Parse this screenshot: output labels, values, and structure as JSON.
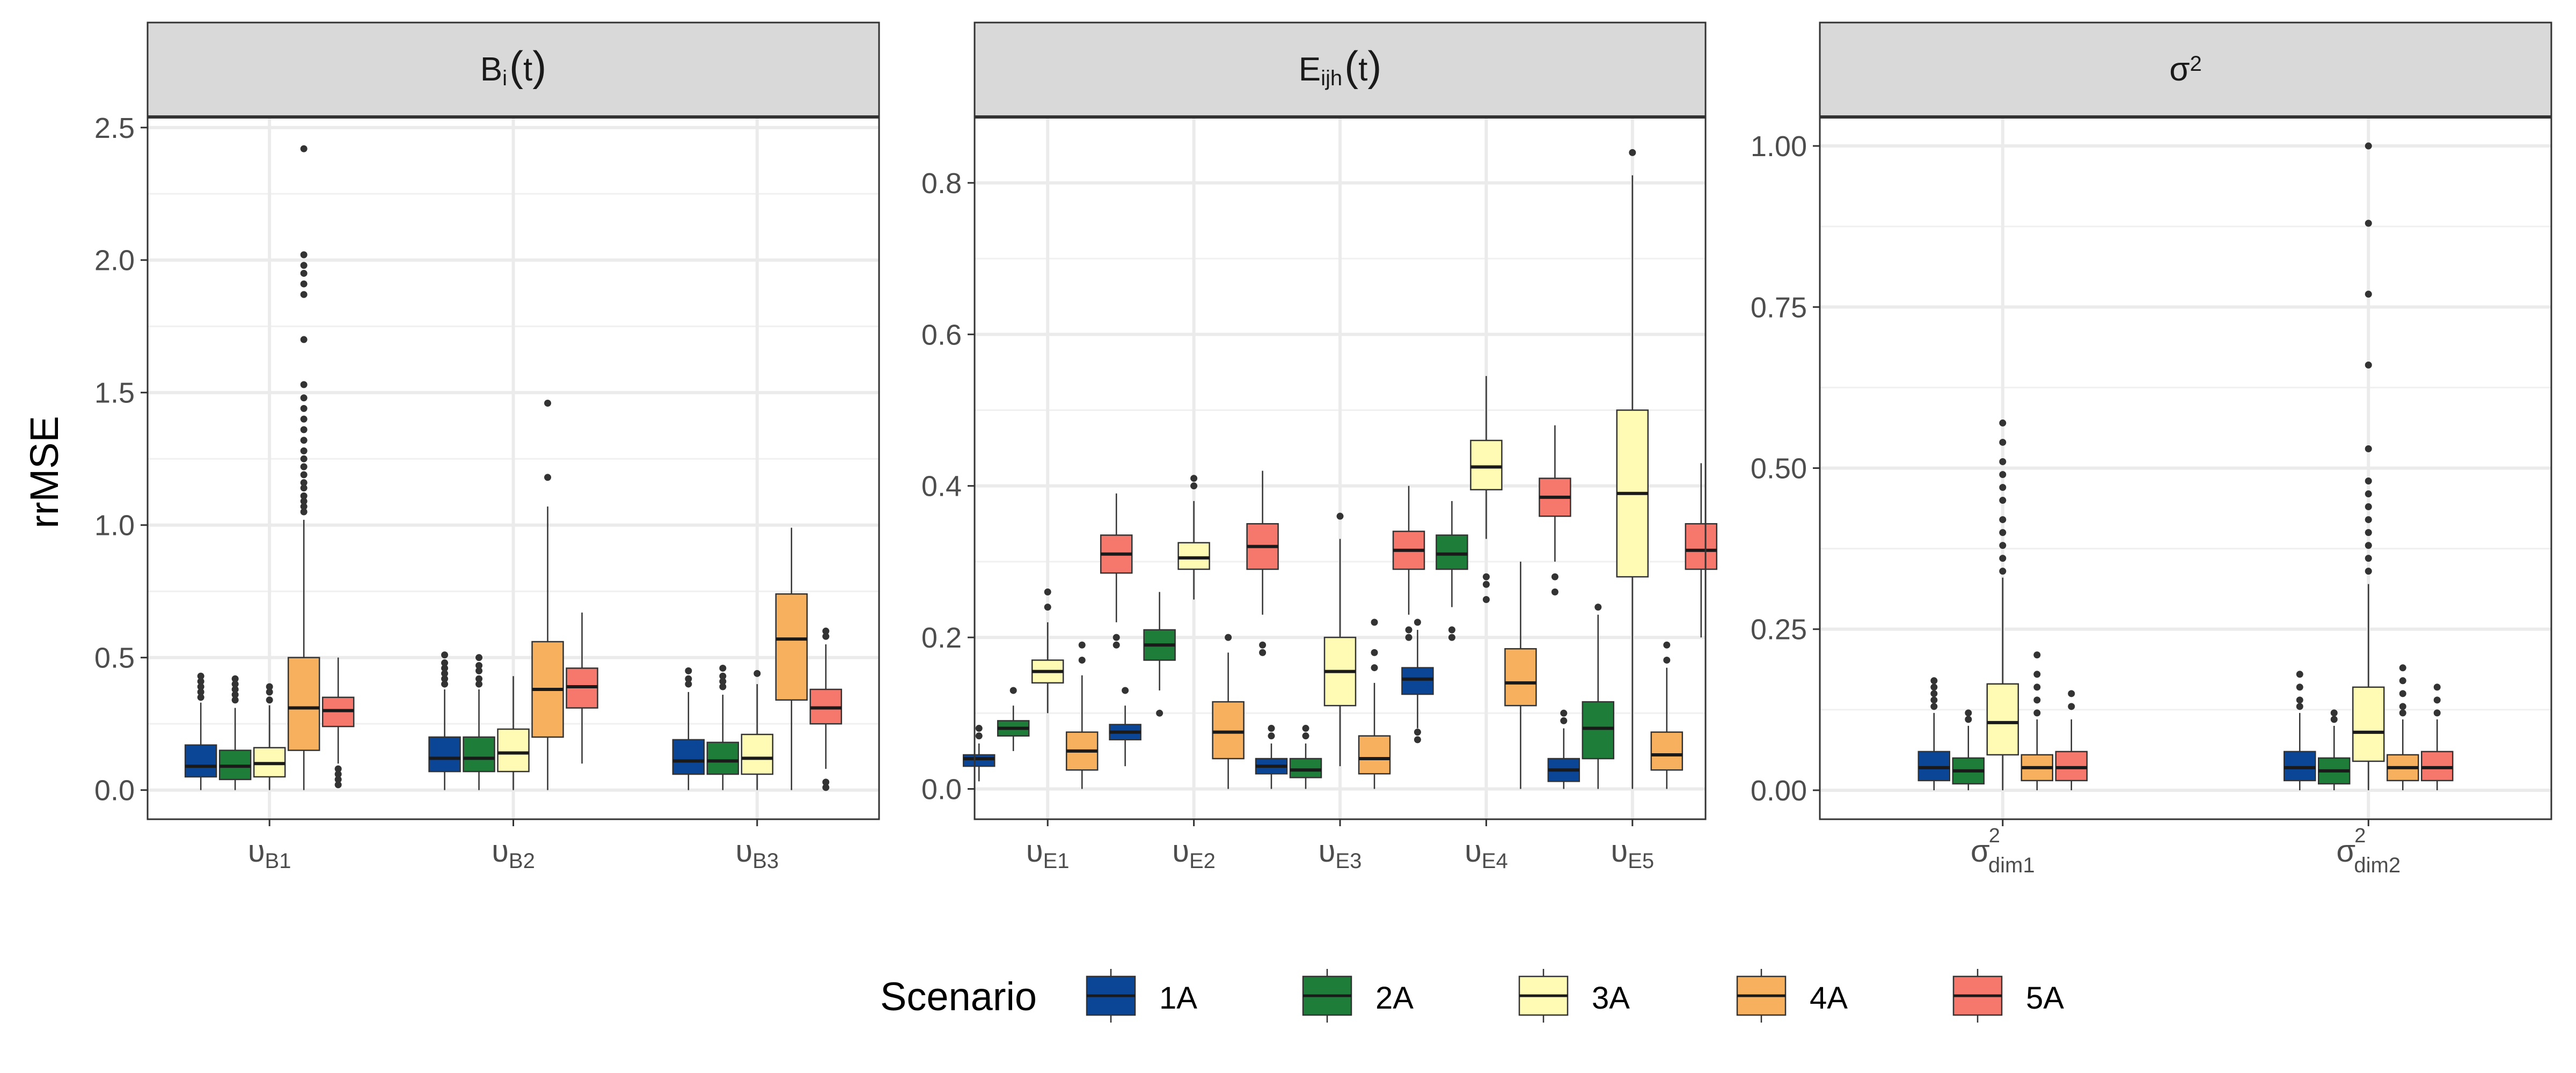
{
  "chart_data": {
    "type": "boxplot",
    "ylabel": "rrMSE",
    "legend": {
      "title": "Scenario",
      "position": "bottom",
      "entries": [
        {
          "label": "1A",
          "color": "#0B4596"
        },
        {
          "label": "2A",
          "color": "#1F7D3A"
        },
        {
          "label": "3A",
          "color": "#FFFBB5"
        },
        {
          "label": "4A",
          "color": "#F7B05E"
        },
        {
          "label": "5A",
          "color": "#F6786D"
        }
      ]
    },
    "panels": [
      {
        "strip": {
          "main": "B",
          "sub": "i",
          "suffix": "t"
        },
        "ylim": [
          -0.11,
          2.54
        ],
        "yticks": [
          0.0,
          0.5,
          1.0,
          1.5,
          2.0,
          2.5
        ],
        "ytick_labels": [
          "0.0",
          "0.5",
          "1.0",
          "1.5",
          "2.0",
          "2.5"
        ],
        "categories": [
          {
            "main": "υ",
            "sub": "B1",
            "sup": ""
          },
          {
            "main": "υ",
            "sub": "B2",
            "sup": ""
          },
          {
            "main": "υ",
            "sub": "B3",
            "sup": ""
          }
        ],
        "boxes": [
          [
            {
              "lo": 0.0,
              "q1": 0.05,
              "med": 0.09,
              "q3": 0.17,
              "hi": 0.33,
              "out": [
                0.35,
                0.37,
                0.39,
                0.41,
                0.43
              ]
            },
            {
              "lo": 0.0,
              "q1": 0.04,
              "med": 0.09,
              "q3": 0.15,
              "hi": 0.31,
              "out": [
                0.34,
                0.36,
                0.38,
                0.4,
                0.42
              ]
            },
            {
              "lo": 0.0,
              "q1": 0.05,
              "med": 0.1,
              "q3": 0.16,
              "hi": 0.32,
              "out": [
                0.34,
                0.37,
                0.39
              ]
            },
            {
              "lo": 0.0,
              "q1": 0.15,
              "med": 0.31,
              "q3": 0.5,
              "hi": 1.02,
              "out": [
                1.05,
                1.07,
                1.09,
                1.11,
                1.14,
                1.16,
                1.19,
                1.22,
                1.25,
                1.28,
                1.32,
                1.36,
                1.4,
                1.44,
                1.48,
                1.53,
                1.7,
                1.87,
                1.91,
                1.95,
                1.98,
                2.02,
                2.42
              ]
            },
            {
              "lo": 0.1,
              "q1": 0.24,
              "med": 0.3,
              "q3": 0.35,
              "hi": 0.5,
              "out": [
                0.02,
                0.04,
                0.06,
                0.08
              ]
            }
          ],
          [
            {
              "lo": 0.0,
              "q1": 0.07,
              "med": 0.12,
              "q3": 0.2,
              "hi": 0.38,
              "out": [
                0.4,
                0.42,
                0.44,
                0.46,
                0.48,
                0.51
              ]
            },
            {
              "lo": 0.0,
              "q1": 0.07,
              "med": 0.12,
              "q3": 0.2,
              "hi": 0.38,
              "out": [
                0.4,
                0.42,
                0.45,
                0.47,
                0.5
              ]
            },
            {
              "lo": 0.0,
              "q1": 0.07,
              "med": 0.14,
              "q3": 0.23,
              "hi": 0.43,
              "out": []
            },
            {
              "lo": 0.0,
              "q1": 0.2,
              "med": 0.38,
              "q3": 0.56,
              "hi": 1.07,
              "out": [
                1.18,
                1.46
              ]
            },
            {
              "lo": 0.1,
              "q1": 0.31,
              "med": 0.39,
              "q3": 0.46,
              "hi": 0.67,
              "out": []
            }
          ],
          [
            {
              "lo": 0.0,
              "q1": 0.06,
              "med": 0.11,
              "q3": 0.19,
              "hi": 0.37,
              "out": [
                0.4,
                0.42,
                0.45
              ]
            },
            {
              "lo": 0.0,
              "q1": 0.06,
              "med": 0.11,
              "q3": 0.18,
              "hi": 0.36,
              "out": [
                0.39,
                0.41,
                0.43,
                0.46
              ]
            },
            {
              "lo": 0.0,
              "q1": 0.06,
              "med": 0.12,
              "q3": 0.21,
              "hi": 0.4,
              "out": [
                0.44
              ]
            },
            {
              "lo": 0.0,
              "q1": 0.34,
              "med": 0.57,
              "q3": 0.74,
              "hi": 0.99,
              "out": []
            },
            {
              "lo": 0.08,
              "q1": 0.25,
              "med": 0.31,
              "q3": 0.38,
              "hi": 0.55,
              "out": [
                0.01,
                0.03,
                0.58,
                0.6
              ]
            }
          ]
        ]
      },
      {
        "strip": {
          "main": "E",
          "sub": "ijh",
          "suffix": "t"
        },
        "ylim": [
          -0.04,
          0.887
        ],
        "yticks": [
          0.0,
          0.2,
          0.4,
          0.6,
          0.8
        ],
        "ytick_labels": [
          "0.0",
          "0.2",
          "0.4",
          "0.6",
          "0.8"
        ],
        "categories": [
          {
            "main": "υ",
            "sub": "E1",
            "sup": ""
          },
          {
            "main": "υ",
            "sub": "E2",
            "sup": ""
          },
          {
            "main": "υ",
            "sub": "E3",
            "sup": ""
          },
          {
            "main": "υ",
            "sub": "E4",
            "sup": ""
          },
          {
            "main": "υ",
            "sub": "E5",
            "sup": ""
          }
        ],
        "boxes": [
          [
            {
              "lo": 0.01,
              "q1": 0.03,
              "med": 0.04,
              "q3": 0.045,
              "hi": 0.06,
              "out": [
                0.07,
                0.08
              ]
            },
            {
              "lo": 0.05,
              "q1": 0.07,
              "med": 0.08,
              "q3": 0.09,
              "hi": 0.11,
              "out": [
                0.13
              ]
            },
            {
              "lo": 0.1,
              "q1": 0.14,
              "med": 0.155,
              "q3": 0.17,
              "hi": 0.22,
              "out": [
                0.24,
                0.26
              ]
            },
            {
              "lo": 0.0,
              "q1": 0.025,
              "med": 0.05,
              "q3": 0.075,
              "hi": 0.15,
              "out": [
                0.17,
                0.19
              ]
            },
            {
              "lo": 0.22,
              "q1": 0.285,
              "med": 0.31,
              "q3": 0.335,
              "hi": 0.39,
              "out": [
                0.19,
                0.2
              ]
            }
          ],
          [
            {
              "lo": 0.03,
              "q1": 0.065,
              "med": 0.075,
              "q3": 0.085,
              "hi": 0.11,
              "out": [
                0.13
              ]
            },
            {
              "lo": 0.13,
              "q1": 0.17,
              "med": 0.19,
              "q3": 0.21,
              "hi": 0.26,
              "out": [
                0.1
              ]
            },
            {
              "lo": 0.25,
              "q1": 0.29,
              "med": 0.305,
              "q3": 0.325,
              "hi": 0.38,
              "out": [
                0.4,
                0.41
              ]
            },
            {
              "lo": 0.0,
              "q1": 0.04,
              "med": 0.075,
              "q3": 0.115,
              "hi": 0.18,
              "out": [
                0.2
              ]
            },
            {
              "lo": 0.23,
              "q1": 0.29,
              "med": 0.32,
              "q3": 0.35,
              "hi": 0.42,
              "out": [
                0.18,
                0.19
              ]
            }
          ],
          [
            {
              "lo": 0.0,
              "q1": 0.02,
              "med": 0.03,
              "q3": 0.04,
              "hi": 0.06,
              "out": [
                0.07,
                0.08
              ]
            },
            {
              "lo": 0.0,
              "q1": 0.015,
              "med": 0.025,
              "q3": 0.04,
              "hi": 0.06,
              "out": [
                0.07,
                0.08
              ]
            },
            {
              "lo": 0.03,
              "q1": 0.11,
              "med": 0.155,
              "q3": 0.2,
              "hi": 0.33,
              "out": [
                0.36
              ]
            },
            {
              "lo": 0.0,
              "q1": 0.02,
              "med": 0.04,
              "q3": 0.07,
              "hi": 0.14,
              "out": [
                0.16,
                0.18,
                0.22
              ]
            },
            {
              "lo": 0.23,
              "q1": 0.29,
              "med": 0.315,
              "q3": 0.34,
              "hi": 0.4,
              "out": [
                0.2,
                0.21
              ]
            }
          ],
          [
            {
              "lo": 0.08,
              "q1": 0.125,
              "med": 0.145,
              "q3": 0.16,
              "hi": 0.21,
              "out": [
                0.065,
                0.075,
                0.22
              ]
            },
            {
              "lo": 0.24,
              "q1": 0.29,
              "med": 0.31,
              "q3": 0.335,
              "hi": 0.38,
              "out": [
                0.2,
                0.21
              ]
            },
            {
              "lo": 0.33,
              "q1": 0.395,
              "med": 0.425,
              "q3": 0.46,
              "hi": 0.545,
              "out": [
                0.25,
                0.27,
                0.28
              ]
            },
            {
              "lo": 0.0,
              "q1": 0.11,
              "med": 0.14,
              "q3": 0.185,
              "hi": 0.3,
              "out": []
            },
            {
              "lo": 0.3,
              "q1": 0.36,
              "med": 0.385,
              "q3": 0.41,
              "hi": 0.48,
              "out": [
                0.26,
                0.28
              ]
            }
          ],
          [
            {
              "lo": 0.0,
              "q1": 0.01,
              "med": 0.025,
              "q3": 0.04,
              "hi": 0.08,
              "out": [
                0.09,
                0.1
              ]
            },
            {
              "lo": 0.0,
              "q1": 0.04,
              "med": 0.08,
              "q3": 0.115,
              "hi": 0.23,
              "out": [
                0.24
              ]
            },
            {
              "lo": 0.0,
              "q1": 0.28,
              "med": 0.39,
              "q3": 0.5,
              "hi": 0.81,
              "out": [
                0.84
              ]
            },
            {
              "lo": 0.0,
              "q1": 0.025,
              "med": 0.045,
              "q3": 0.075,
              "hi": 0.16,
              "out": [
                0.17,
                0.19
              ]
            },
            {
              "lo": 0.2,
              "q1": 0.29,
              "med": 0.315,
              "q3": 0.35,
              "hi": 0.43,
              "out": []
            }
          ]
        ]
      },
      {
        "strip": {
          "main": "σ",
          "sup": "2"
        },
        "ylim": [
          -0.045,
          1.045
        ],
        "yticks": [
          0.0,
          0.25,
          0.5,
          0.75,
          1.0
        ],
        "ytick_labels": [
          "0.00",
          "0.25",
          "0.50",
          "0.75",
          "1.00"
        ],
        "categories": [
          {
            "main": "σ",
            "sub": "dim1",
            "sup": "2"
          },
          {
            "main": "σ",
            "sub": "dim2",
            "sup": "2"
          }
        ],
        "boxes": [
          [
            {
              "lo": 0.0,
              "q1": 0.015,
              "med": 0.035,
              "q3": 0.06,
              "hi": 0.12,
              "out": [
                0.13,
                0.14,
                0.15,
                0.16,
                0.17
              ]
            },
            {
              "lo": 0.0,
              "q1": 0.01,
              "med": 0.03,
              "q3": 0.05,
              "hi": 0.1,
              "out": [
                0.11,
                0.12
              ]
            },
            {
              "lo": 0.0,
              "q1": 0.055,
              "med": 0.105,
              "q3": 0.165,
              "hi": 0.33,
              "out": [
                0.34,
                0.36,
                0.38,
                0.4,
                0.42,
                0.45,
                0.47,
                0.49,
                0.51,
                0.54,
                0.57
              ]
            },
            {
              "lo": 0.0,
              "q1": 0.015,
              "med": 0.035,
              "q3": 0.055,
              "hi": 0.11,
              "out": [
                0.12,
                0.14,
                0.16,
                0.18,
                0.21
              ]
            },
            {
              "lo": 0.0,
              "q1": 0.015,
              "med": 0.035,
              "q3": 0.06,
              "hi": 0.11,
              "out": [
                0.13,
                0.15
              ]
            }
          ],
          [
            {
              "lo": 0.0,
              "q1": 0.015,
              "med": 0.035,
              "q3": 0.06,
              "hi": 0.12,
              "out": [
                0.13,
                0.14,
                0.16,
                0.18
              ]
            },
            {
              "lo": 0.0,
              "q1": 0.01,
              "med": 0.03,
              "q3": 0.05,
              "hi": 0.1,
              "out": [
                0.11,
                0.12
              ]
            },
            {
              "lo": 0.0,
              "q1": 0.045,
              "med": 0.09,
              "q3": 0.16,
              "hi": 0.32,
              "out": [
                0.34,
                0.36,
                0.38,
                0.4,
                0.42,
                0.44,
                0.46,
                0.48,
                0.53,
                0.66,
                0.77,
                0.88,
                1.0
              ]
            },
            {
              "lo": 0.0,
              "q1": 0.015,
              "med": 0.035,
              "q3": 0.055,
              "hi": 0.11,
              "out": [
                0.12,
                0.13,
                0.15,
                0.17,
                0.19
              ]
            },
            {
              "lo": 0.0,
              "q1": 0.015,
              "med": 0.035,
              "q3": 0.06,
              "hi": 0.11,
              "out": [
                0.12,
                0.14,
                0.16
              ]
            }
          ]
        ]
      }
    ]
  }
}
